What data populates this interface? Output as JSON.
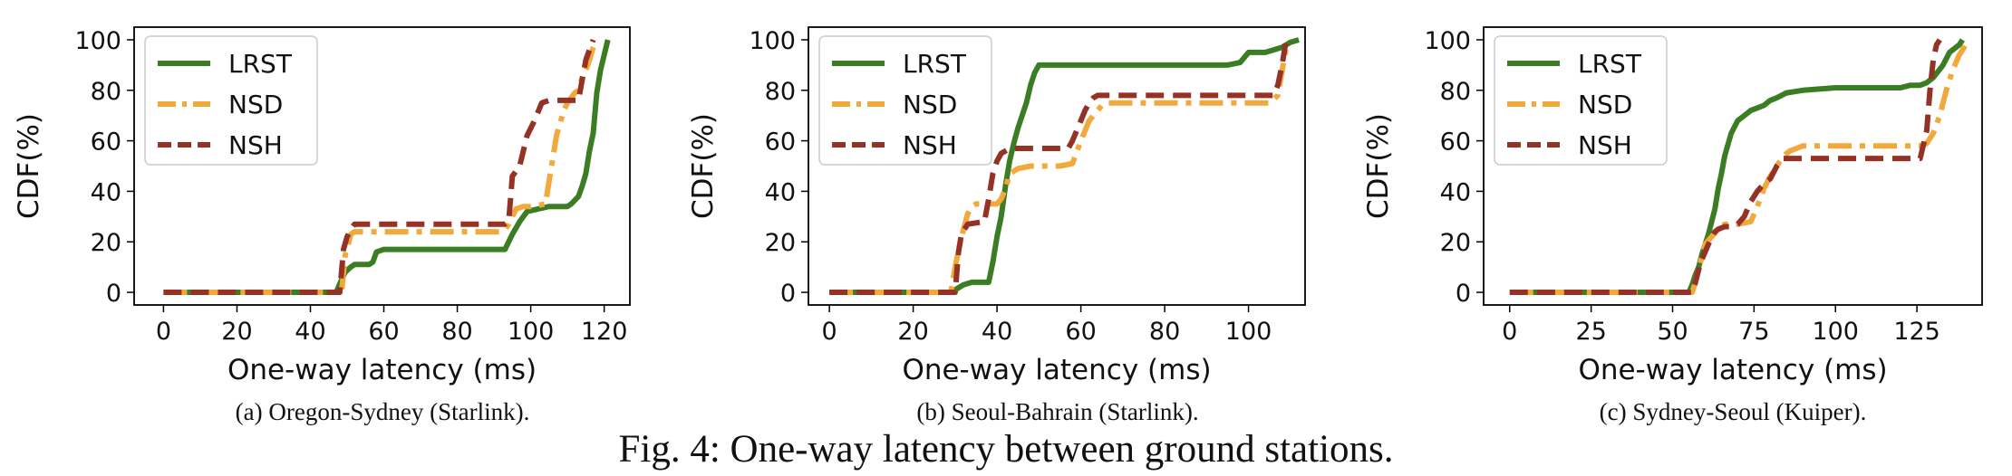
{
  "chart_data": [
    {
      "type": "line",
      "title": "",
      "caption": "(a) Oregon-Sydney (Starlink).",
      "xlabel": "One-way latency (ms)",
      "ylabel": "CDF(%)",
      "xlim": [
        -8,
        127
      ],
      "ylim": [
        -5,
        105
      ],
      "xticks": [
        0,
        20,
        40,
        60,
        80,
        100,
        120
      ],
      "yticks": [
        0,
        20,
        40,
        60,
        80,
        100
      ],
      "legend_position": "top-left",
      "series": [
        {
          "name": "LRST",
          "color": "#3a7d22",
          "style": "solid",
          "x": [
            0,
            47,
            48.5,
            49.5,
            51,
            52,
            54,
            56,
            57,
            58,
            60,
            80,
            92,
            93,
            95,
            97,
            99,
            102,
            105,
            110,
            111,
            113,
            114,
            115,
            116,
            117,
            118,
            119,
            121
          ],
          "y": [
            0,
            0,
            5,
            8,
            10,
            11,
            11,
            11,
            12,
            16,
            17,
            17,
            17,
            17,
            23,
            28,
            32,
            33,
            34,
            34,
            35,
            38,
            42,
            47,
            56,
            63,
            79,
            88,
            100
          ]
        },
        {
          "name": "NSD",
          "color": "#f2a93b",
          "style": "dashdot",
          "x": [
            0,
            48.5,
            49.5,
            50.5,
            51,
            52,
            55,
            58,
            85,
            92,
            93,
            94,
            95,
            96,
            98,
            100,
            104,
            107,
            108,
            109,
            110,
            112,
            113,
            114,
            115,
            116,
            117,
            118
          ],
          "y": [
            0,
            0,
            15,
            20,
            23,
            24,
            24,
            24,
            24,
            24,
            25,
            27,
            30,
            33,
            34,
            34,
            35,
            62,
            67,
            72,
            75,
            79,
            80,
            85,
            88,
            92,
            97,
            100
          ]
        },
        {
          "name": "NSH",
          "color": "#953226",
          "style": "dashed",
          "x": [
            0,
            48,
            49,
            50,
            51,
            52,
            60,
            93,
            94,
            95,
            96,
            97,
            99,
            101,
            103,
            105,
            112,
            113,
            114,
            115,
            116,
            117
          ],
          "y": [
            0,
            0,
            17,
            22,
            25,
            27,
            27,
            27,
            28,
            46,
            48,
            50,
            62,
            68,
            75,
            76,
            76,
            76,
            84,
            92,
            96,
            100
          ]
        }
      ]
    },
    {
      "type": "line",
      "title": "",
      "caption": "(b) Seoul-Bahrain (Starlink).",
      "xlabel": "One-way latency (ms)",
      "ylabel": "CDF(%)",
      "xlim": [
        -5,
        113.5
      ],
      "ylim": [
        -5,
        105
      ],
      "xticks": [
        0,
        20,
        40,
        60,
        80,
        100
      ],
      "yticks": [
        0,
        20,
        40,
        60,
        80,
        100
      ],
      "legend_position": "top-left",
      "series": [
        {
          "name": "LRST",
          "color": "#3a7d22",
          "style": "solid",
          "x": [
            0,
            29,
            30,
            31,
            32,
            34,
            37,
            38,
            39,
            40,
            41,
            42,
            43,
            44,
            45,
            46,
            47,
            48,
            49,
            50,
            95,
            98,
            100,
            104,
            106,
            108,
            110,
            112
          ],
          "y": [
            0,
            0,
            1,
            2,
            3,
            4,
            4,
            4,
            12,
            22,
            30,
            42,
            52,
            59,
            65,
            70,
            75,
            82,
            87,
            90,
            90,
            91,
            95,
            95,
            96,
            97,
            99,
            100
          ]
        },
        {
          "name": "NSD",
          "color": "#f2a93b",
          "style": "dashdot",
          "x": [
            0,
            29,
            30,
            31,
            32,
            33,
            34,
            35,
            38,
            40,
            41,
            42,
            43,
            45,
            48,
            50,
            55,
            58,
            60,
            62,
            64,
            65,
            66,
            70,
            99,
            105,
            107,
            109
          ],
          "y": [
            0,
            0,
            10,
            18,
            25,
            31,
            34,
            35,
            35,
            35,
            37,
            41,
            47,
            49,
            50,
            50,
            50,
            51,
            60,
            68,
            72,
            74,
            75,
            75,
            75,
            75,
            78,
            97
          ]
        },
        {
          "name": "NSH",
          "color": "#953226",
          "style": "dashed",
          "x": [
            0,
            30,
            30.8,
            31.5,
            33,
            37,
            38,
            39,
            40,
            41,
            42,
            43,
            45,
            50,
            55,
            57,
            58,
            60,
            61,
            62,
            63,
            64,
            70,
            90,
            105,
            106,
            107,
            108,
            109
          ],
          "y": [
            0,
            0,
            16,
            23,
            27,
            28,
            37,
            47,
            52,
            55,
            56,
            57,
            57,
            57,
            57,
            57,
            60,
            68,
            72,
            75,
            77,
            78,
            78,
            78,
            78,
            78,
            82,
            90,
            100
          ]
        }
      ]
    },
    {
      "type": "line",
      "title": "",
      "caption": "(c) Sydney-Seoul (Kuiper).",
      "xlabel": "One-way latency (ms)",
      "ylabel": "CDF(%)",
      "xlim": [
        -8,
        145
      ],
      "ylim": [
        -5,
        105
      ],
      "xticks": [
        0,
        25,
        50,
        75,
        100,
        125
      ],
      "yticks": [
        0,
        20,
        40,
        60,
        80,
        100
      ],
      "legend_position": "top-left",
      "series": [
        {
          "name": "LRST",
          "color": "#3a7d22",
          "style": "solid",
          "x": [
            0,
            55,
            56,
            57,
            58,
            59,
            60,
            61,
            62,
            63,
            64,
            65,
            66,
            68,
            70,
            72,
            74,
            76,
            78,
            80,
            82,
            85,
            90,
            100,
            110,
            120,
            123,
            126,
            128,
            130,
            133,
            135,
            138,
            139
          ],
          "y": [
            0,
            0,
            3,
            7,
            10,
            15,
            19,
            23,
            28,
            33,
            41,
            47,
            54,
            63,
            68,
            70,
            72,
            73,
            74,
            76,
            77,
            79,
            80,
            81,
            81,
            81,
            82,
            82,
            83,
            85,
            90,
            95,
            98,
            100
          ]
        },
        {
          "name": "NSD",
          "color": "#f2a93b",
          "style": "dashdot",
          "x": [
            0,
            56,
            57,
            58,
            59,
            60,
            62,
            64,
            66,
            70,
            74,
            76,
            78,
            80,
            82,
            84,
            86,
            88,
            90,
            110,
            126,
            128,
            130,
            132,
            134,
            136,
            138,
            140
          ],
          "y": [
            0,
            0,
            4,
            9,
            14,
            19,
            22,
            25,
            27,
            27,
            28,
            34,
            41,
            46,
            50,
            54,
            56,
            57,
            58,
            58,
            58,
            59,
            63,
            70,
            80,
            88,
            94,
            98
          ]
        },
        {
          "name": "NSH",
          "color": "#953226",
          "style": "dashed",
          "x": [
            0,
            56,
            57,
            58,
            59,
            60,
            61,
            62,
            63,
            64,
            66,
            68,
            70,
            72,
            74,
            76,
            78,
            80,
            82,
            84,
            86,
            90,
            100,
            110,
            118,
            126,
            128,
            129,
            130,
            131,
            132
          ],
          "y": [
            0,
            0,
            4,
            9,
            13,
            16,
            19,
            22,
            24,
            25,
            26,
            26,
            27,
            30,
            36,
            40,
            43,
            45,
            50,
            53,
            53,
            53,
            53,
            53,
            53,
            53,
            64,
            80,
            92,
            98,
            100
          ]
        }
      ]
    }
  ],
  "figure_caption": "Fig. 4: One-way latency between ground stations."
}
